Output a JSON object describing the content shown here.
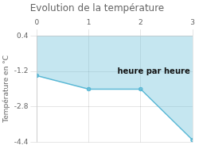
{
  "chart_data": {
    "type": "line",
    "title": "Evolution de la température",
    "ylabel": "Température en °C",
    "annotations": [
      {
        "text": "heure par heure",
        "x": 1.55,
        "y": -1.3
      }
    ],
    "x": [
      0,
      1,
      2,
      3
    ],
    "values": [
      -1.4,
      -2.0,
      -2.0,
      -4.3
    ],
    "color": "#5ab8d5",
    "fill_top": 0.4,
    "xlim": [
      0,
      3
    ],
    "ylim": [
      -4.4,
      0.4
    ],
    "xticks": [
      0,
      1,
      2,
      3
    ],
    "yticks": [
      0.4,
      -1.2,
      -2.8,
      -4.4
    ],
    "grid": true
  }
}
